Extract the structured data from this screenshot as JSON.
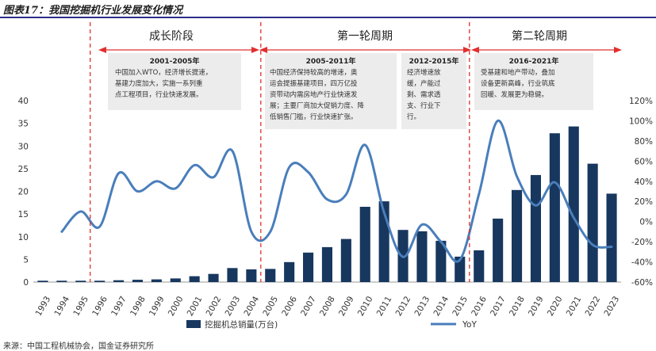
{
  "title": "图表17：我国挖掘机行业发展变化情况",
  "source": "来源：中国工程机械协会，国金证券研究所",
  "phases": [
    {
      "label": "成长阶段"
    },
    {
      "label": "第一轮周期"
    },
    {
      "label": "第二轮周期"
    }
  ],
  "boxes": [
    {
      "title": "2001-2005年",
      "lines": [
        "中国加入WTO，经济增长提速，",
        "基建力度加大，实施一系列重",
        "点工程项目，行业快速发展。"
      ]
    },
    {
      "title": "2005-2011年",
      "lines": [
        "中国经济保持较高的增速，奥",
        "运会提振基建项目，四万亿投",
        "资带动内需房地产行业快速发",
        "展；主要厂商加大促销力度、降",
        "低销售门槛，行业快速扩张。"
      ]
    },
    {
      "title": "2012-2015年",
      "lines": [
        "经济增速放",
        "缓，产能过",
        "剩、需求透",
        "支、行业下",
        "行。"
      ]
    },
    {
      "title": "2016-2021年",
      "lines": [
        "受基建和地产带动，叠加",
        "设备更新高峰，行业筑底",
        "回暖、发展更为稳健。"
      ]
    }
  ],
  "legend": {
    "bar": "挖掘机总销量(万台)",
    "line": "YoY"
  },
  "colors": {
    "bar": "#17375e",
    "line": "#4a7ebb",
    "divider": "#e03030",
    "box": "#ececec"
  },
  "chart_data": {
    "type": "bar+line",
    "categories": [
      "1993",
      "1994",
      "1995",
      "1996",
      "1997",
      "1998",
      "1999",
      "2000",
      "2001",
      "2002",
      "2003",
      "2004",
      "2005",
      "2006",
      "2007",
      "2008",
      "2009",
      "2010",
      "2011",
      "2012",
      "2013",
      "2014",
      "2015",
      "2016",
      "2017",
      "2018",
      "2019",
      "2020",
      "2021",
      "2022",
      "2023"
    ],
    "series": [
      {
        "name": "挖掘机总销量(万台)",
        "type": "bar",
        "axis": "left",
        "values": [
          0.3,
          0.3,
          0.3,
          0.3,
          0.4,
          0.5,
          0.6,
          0.8,
          1.3,
          1.8,
          3.1,
          2.8,
          2.9,
          4.4,
          6.5,
          7.7,
          9.5,
          16.6,
          17.8,
          11.5,
          11.2,
          9.1,
          5.6,
          7.0,
          14.0,
          20.3,
          23.6,
          32.8,
          34.3,
          26.1,
          19.5
        ]
      },
      {
        "name": "YoY",
        "type": "line",
        "axis": "right",
        "values": [
          null,
          -10,
          10,
          -5,
          48,
          30,
          40,
          33,
          56,
          44,
          70,
          -10,
          -10,
          54,
          49,
          22,
          27,
          76,
          9,
          -35,
          -3,
          -20,
          -38,
          27,
          100,
          45,
          16,
          39,
          4,
          -23,
          -25
        ]
      }
    ],
    "ylim_left": [
      0,
      40
    ],
    "yticks_left": [
      0,
      5,
      10,
      15,
      20,
      25,
      30,
      35,
      40
    ],
    "ylim_right": [
      -60,
      120
    ],
    "yticks_right": [
      "-60%",
      "-40%",
      "-20%",
      "0%",
      "20%",
      "40%",
      "60%",
      "80%",
      "100%",
      "120%"
    ],
    "yticks_right_values": [
      -60,
      -40,
      -20,
      0,
      20,
      40,
      60,
      80,
      100,
      120
    ],
    "dividers_after": [
      "1995",
      "2004",
      "2015"
    ]
  }
}
